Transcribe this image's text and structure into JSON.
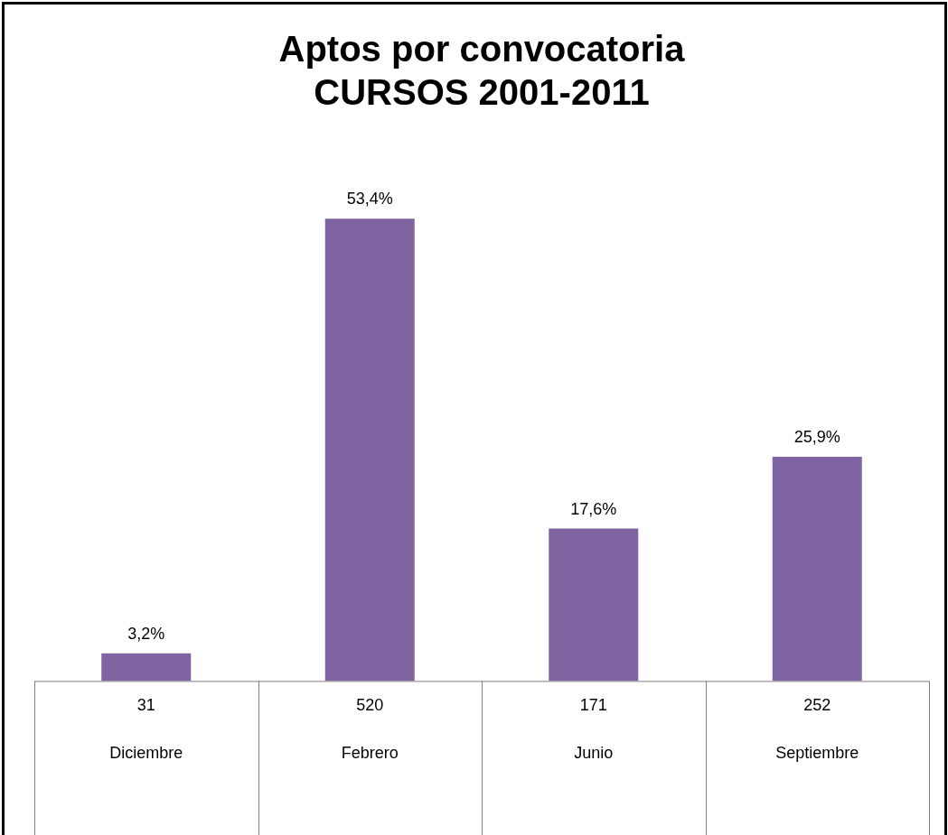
{
  "chart_data": {
    "type": "bar",
    "title": "Aptos por convocatoria\nCURSOS 2001-2011",
    "categories": [
      "Diciembre",
      "Febrero",
      "Junio",
      "Septiembre"
    ],
    "values": [
      3.2,
      53.4,
      17.6,
      25.9
    ],
    "color": "#8064a2",
    "value_labels": [
      "3,2%",
      "53,4%",
      "17,6%",
      "25,9%"
    ],
    "annotations": [
      "31",
      "520",
      "171",
      "252"
    ],
    "grid": false,
    "legend": false
  }
}
